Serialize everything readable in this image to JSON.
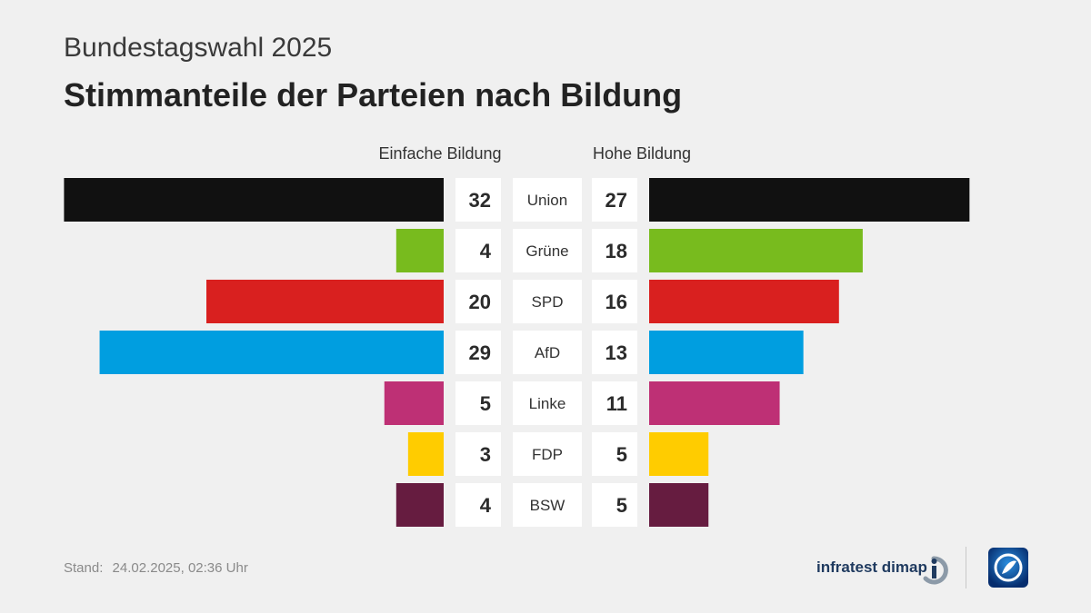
{
  "header": {
    "supertitle": "Bundestagswahl 2025",
    "title": "Stimmanteile der Parteien nach Bildung"
  },
  "chart_data": {
    "type": "bar",
    "layout": "butterfly",
    "title": "Stimmanteile der Parteien nach Bildung",
    "left_label": "Einfache Bildung",
    "right_label": "Hohe Bildung",
    "categories": [
      "Union",
      "Grüne",
      "SPD",
      "AfD",
      "Linke",
      "FDP",
      "BSW"
    ],
    "series": [
      {
        "name": "Einfache Bildung",
        "values": [
          32,
          4,
          20,
          29,
          5,
          3,
          4
        ]
      },
      {
        "name": "Hohe Bildung",
        "values": [
          27,
          18,
          16,
          13,
          11,
          5,
          5
        ]
      }
    ],
    "colors": [
      "#111111",
      "#78bb1e",
      "#d9201f",
      "#009ee0",
      "#be3075",
      "#ffcc00",
      "#661c40"
    ]
  },
  "footer": {
    "stand_label": "Stand:",
    "stand_value": "24.02.2025, 02:36 Uhr",
    "brand": "infratest dimap"
  },
  "icons": {
    "brand_logo": "infratest-dimap-logo-icon",
    "tv_logo": "tagesschau-logo-icon"
  }
}
